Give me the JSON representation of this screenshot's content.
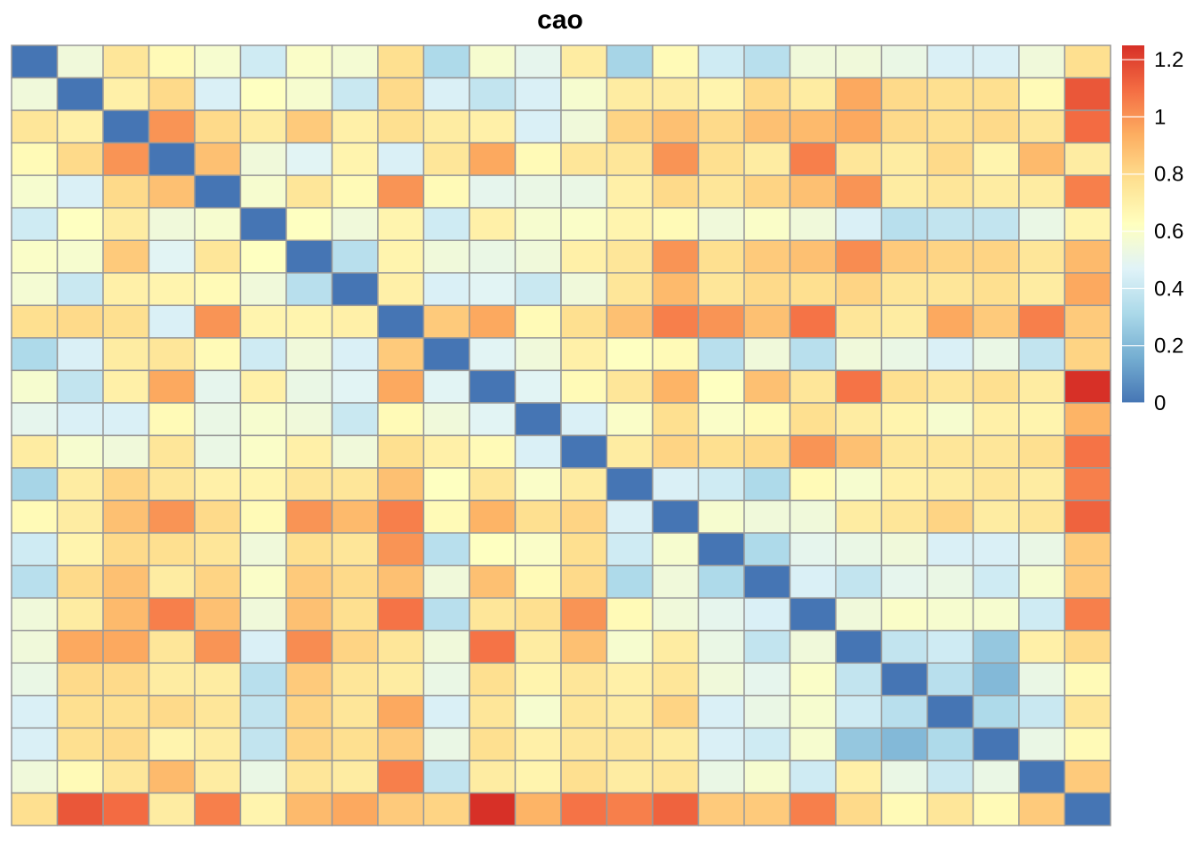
{
  "chart_data": {
    "type": "heatmap",
    "title": "cao",
    "colorbar": {
      "min": 0,
      "max": 1.25,
      "ticks": [
        0,
        0.2,
        0.4,
        0.6,
        0.8,
        1,
        1.2
      ],
      "tick_labels": [
        "0",
        "0.2",
        "0.4",
        "0.6",
        "0.8",
        "1",
        "1.2"
      ],
      "colors": [
        "#4575B4",
        "#74ADD1",
        "#ABD9E9",
        "#E0F3F8",
        "#FFFFBF",
        "#FEE090",
        "#FDAE61",
        "#F46D43",
        "#D73027"
      ]
    },
    "rows": 24,
    "cols": 24,
    "values": [
      [
        0.0,
        0.55,
        0.75,
        0.65,
        0.58,
        0.42,
        0.6,
        0.57,
        0.78,
        0.32,
        0.58,
        0.5,
        0.72,
        0.3,
        0.65,
        0.42,
        0.35,
        0.55,
        0.55,
        0.52,
        0.45,
        0.45,
        0.55,
        0.78
      ],
      [
        0.55,
        0.0,
        0.7,
        0.8,
        0.45,
        0.62,
        0.58,
        0.4,
        0.8,
        0.45,
        0.38,
        0.45,
        0.58,
        0.72,
        0.72,
        0.68,
        0.8,
        0.72,
        0.95,
        0.8,
        0.78,
        0.78,
        0.65,
        1.15
      ],
      [
        0.75,
        0.7,
        0.0,
        1.0,
        0.8,
        0.72,
        0.85,
        0.7,
        0.78,
        0.72,
        0.7,
        0.45,
        0.55,
        0.82,
        0.88,
        0.8,
        0.88,
        0.9,
        0.95,
        0.8,
        0.78,
        0.8,
        0.75,
        1.1
      ],
      [
        0.65,
        0.8,
        1.0,
        0.0,
        0.88,
        0.55,
        0.48,
        0.68,
        0.45,
        0.75,
        0.95,
        0.65,
        0.75,
        0.75,
        1.0,
        0.78,
        0.72,
        1.05,
        0.75,
        0.72,
        0.8,
        0.68,
        0.9,
        0.72
      ],
      [
        0.58,
        0.45,
        0.8,
        0.88,
        0.0,
        0.58,
        0.75,
        0.65,
        1.0,
        0.65,
        0.5,
        0.52,
        0.52,
        0.7,
        0.8,
        0.75,
        0.82,
        0.88,
        1.0,
        0.72,
        0.75,
        0.72,
        0.72,
        1.05
      ],
      [
        0.42,
        0.62,
        0.72,
        0.55,
        0.58,
        0.0,
        0.62,
        0.55,
        0.68,
        0.42,
        0.7,
        0.58,
        0.6,
        0.68,
        0.65,
        0.55,
        0.6,
        0.55,
        0.45,
        0.35,
        0.38,
        0.38,
        0.52,
        0.68
      ],
      [
        0.6,
        0.58,
        0.85,
        0.48,
        0.75,
        0.62,
        0.0,
        0.35,
        0.68,
        0.55,
        0.52,
        0.55,
        0.7,
        0.75,
        1.0,
        0.78,
        0.85,
        0.88,
        1.02,
        0.85,
        0.82,
        0.82,
        0.75,
        0.9
      ],
      [
        0.57,
        0.4,
        0.7,
        0.68,
        0.65,
        0.55,
        0.35,
        0.0,
        0.7,
        0.45,
        0.48,
        0.4,
        0.55,
        0.75,
        0.9,
        0.75,
        0.8,
        0.78,
        0.82,
        0.75,
        0.75,
        0.78,
        0.72,
        0.95
      ],
      [
        0.78,
        0.8,
        0.78,
        0.45,
        1.0,
        0.68,
        0.68,
        0.7,
        0.0,
        0.85,
        0.95,
        0.65,
        0.78,
        0.88,
        1.05,
        1.0,
        0.88,
        1.08,
        0.75,
        0.72,
        0.95,
        0.85,
        1.05,
        0.85
      ],
      [
        0.32,
        0.45,
        0.72,
        0.75,
        0.65,
        0.42,
        0.55,
        0.45,
        0.85,
        0.0,
        0.48,
        0.55,
        0.7,
        0.62,
        0.65,
        0.35,
        0.55,
        0.35,
        0.55,
        0.52,
        0.45,
        0.52,
        0.38,
        0.82
      ],
      [
        0.58,
        0.38,
        0.7,
        0.95,
        0.5,
        0.7,
        0.52,
        0.48,
        0.95,
        0.48,
        0.0,
        0.48,
        0.65,
        0.75,
        0.92,
        0.62,
        0.88,
        0.75,
        1.08,
        0.78,
        0.75,
        0.78,
        0.72,
        1.28
      ],
      [
        0.5,
        0.45,
        0.45,
        0.65,
        0.52,
        0.58,
        0.55,
        0.4,
        0.65,
        0.55,
        0.48,
        0.0,
        0.45,
        0.6,
        0.78,
        0.6,
        0.65,
        0.78,
        0.72,
        0.68,
        0.58,
        0.7,
        0.68,
        0.92
      ],
      [
        0.72,
        0.58,
        0.55,
        0.75,
        0.52,
        0.6,
        0.7,
        0.55,
        0.78,
        0.7,
        0.65,
        0.45,
        0.0,
        0.72,
        0.82,
        0.78,
        0.8,
        1.0,
        0.88,
        0.75,
        0.75,
        0.75,
        0.78,
        1.08
      ],
      [
        0.3,
        0.72,
        0.82,
        0.75,
        0.7,
        0.68,
        0.75,
        0.75,
        0.88,
        0.62,
        0.75,
        0.6,
        0.72,
        0.0,
        0.45,
        0.42,
        0.32,
        0.65,
        0.58,
        0.7,
        0.72,
        0.75,
        0.72,
        1.05
      ],
      [
        0.65,
        0.72,
        0.88,
        1.0,
        0.8,
        0.65,
        1.0,
        0.9,
        1.05,
        0.65,
        0.92,
        0.78,
        0.82,
        0.45,
        0.0,
        0.58,
        0.55,
        0.55,
        0.72,
        0.75,
        0.82,
        0.72,
        0.75,
        1.12
      ],
      [
        0.42,
        0.68,
        0.8,
        0.78,
        0.75,
        0.55,
        0.78,
        0.75,
        1.0,
        0.35,
        0.62,
        0.6,
        0.78,
        0.42,
        0.58,
        0.0,
        0.32,
        0.5,
        0.52,
        0.55,
        0.45,
        0.45,
        0.52,
        0.85
      ],
      [
        0.35,
        0.8,
        0.88,
        0.72,
        0.82,
        0.6,
        0.85,
        0.8,
        0.88,
        0.55,
        0.88,
        0.65,
        0.8,
        0.32,
        0.55,
        0.32,
        0.0,
        0.45,
        0.38,
        0.5,
        0.52,
        0.42,
        0.58,
        0.85
      ],
      [
        0.55,
        0.72,
        0.9,
        1.05,
        0.88,
        0.55,
        0.88,
        0.78,
        1.08,
        0.35,
        0.75,
        0.78,
        1.0,
        0.65,
        0.55,
        0.5,
        0.45,
        0.0,
        0.55,
        0.6,
        0.58,
        0.58,
        0.42,
        1.05
      ],
      [
        0.55,
        0.95,
        0.95,
        0.75,
        1.0,
        0.45,
        1.02,
        0.82,
        0.75,
        0.55,
        1.08,
        0.72,
        0.88,
        0.58,
        0.72,
        0.52,
        0.38,
        0.55,
        0.0,
        0.38,
        0.42,
        0.25,
        0.7,
        0.8
      ],
      [
        0.52,
        0.8,
        0.8,
        0.72,
        0.72,
        0.35,
        0.85,
        0.75,
        0.72,
        0.52,
        0.78,
        0.68,
        0.75,
        0.7,
        0.75,
        0.55,
        0.5,
        0.6,
        0.38,
        0.0,
        0.35,
        0.2,
        0.52,
        0.65
      ],
      [
        0.45,
        0.78,
        0.78,
        0.8,
        0.75,
        0.38,
        0.82,
        0.75,
        0.95,
        0.45,
        0.75,
        0.58,
        0.75,
        0.72,
        0.82,
        0.45,
        0.52,
        0.58,
        0.42,
        0.35,
        0.0,
        0.32,
        0.4,
        0.75
      ],
      [
        0.45,
        0.78,
        0.8,
        0.68,
        0.72,
        0.38,
        0.82,
        0.78,
        0.85,
        0.52,
        0.78,
        0.7,
        0.75,
        0.75,
        0.72,
        0.45,
        0.42,
        0.58,
        0.25,
        0.2,
        0.32,
        0.0,
        0.52,
        0.65
      ],
      [
        0.55,
        0.65,
        0.75,
        0.9,
        0.72,
        0.52,
        0.75,
        0.72,
        1.05,
        0.38,
        0.72,
        0.68,
        0.78,
        0.72,
        0.75,
        0.52,
        0.58,
        0.42,
        0.7,
        0.52,
        0.4,
        0.52,
        0.0,
        0.85
      ],
      [
        0.78,
        1.15,
        1.1,
        0.72,
        1.05,
        0.68,
        0.9,
        0.95,
        0.85,
        0.82,
        1.28,
        0.92,
        1.08,
        1.05,
        1.12,
        0.85,
        0.85,
        1.05,
        0.8,
        0.65,
        0.75,
        0.65,
        0.85,
        0.0
      ]
    ]
  }
}
